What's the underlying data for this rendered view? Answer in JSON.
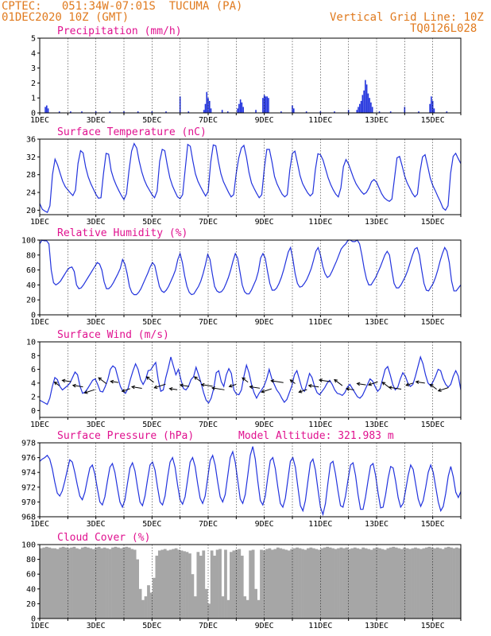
{
  "header": {
    "station": "CPTEC:   051:34W-07:01S  TUCUMA (PA)",
    "date": "01DEC2020 10Z (GMT)",
    "grid_note": "Vertical Grid Line: 10Z",
    "code": "TQ0126L028"
  },
  "colors": {
    "header": "#e07a1e",
    "title": "#e0118f",
    "line": "#2233dd",
    "cloud": "#a6a6a6",
    "grid": "#000000"
  },
  "x_labels": [
    "1DEC",
    "3DEC",
    "5DEC",
    "7DEC",
    "9DEC",
    "11DEC",
    "13DEC",
    "15DEC"
  ],
  "chart_data": [
    {
      "id": "precip",
      "type": "bar",
      "title": "Precipitation (mm/h)",
      "ylim": [
        0,
        5
      ],
      "yticks": [
        0,
        1,
        2,
        3,
        4,
        5
      ],
      "x_unit": "days since 01DEC 10Z",
      "points": [
        [
          0.2,
          0.4
        ],
        [
          0.25,
          0.5
        ],
        [
          0.3,
          0.3
        ],
        [
          0.7,
          0.1
        ],
        [
          1.1,
          0.1
        ],
        [
          1.5,
          0.1
        ],
        [
          2.0,
          0.1
        ],
        [
          2.5,
          0.1
        ],
        [
          3.0,
          0.1
        ],
        [
          3.5,
          0.1
        ],
        [
          4.0,
          0.1
        ],
        [
          4.5,
          0.1
        ],
        [
          5.0,
          1.1
        ],
        [
          5.3,
          0.1
        ],
        [
          5.85,
          0.2
        ],
        [
          5.9,
          0.6
        ],
        [
          5.95,
          1.4
        ],
        [
          6.0,
          1.0
        ],
        [
          6.05,
          0.8
        ],
        [
          6.1,
          0.3
        ],
        [
          6.5,
          0.2
        ],
        [
          6.7,
          0.1
        ],
        [
          7.05,
          0.3
        ],
        [
          7.1,
          0.6
        ],
        [
          7.15,
          0.9
        ],
        [
          7.2,
          0.7
        ],
        [
          7.25,
          0.4
        ],
        [
          7.7,
          0.2
        ],
        [
          7.95,
          1.0
        ],
        [
          8.0,
          1.2
        ],
        [
          8.05,
          1.1
        ],
        [
          8.1,
          1.1
        ],
        [
          8.15,
          1.0
        ],
        [
          8.6,
          0.1
        ],
        [
          9.0,
          0.5
        ],
        [
          9.05,
          0.3
        ],
        [
          9.5,
          0.1
        ],
        [
          10.0,
          0.1
        ],
        [
          10.5,
          0.1
        ],
        [
          11.0,
          0.2
        ],
        [
          11.3,
          0.2
        ],
        [
          11.35,
          0.4
        ],
        [
          11.4,
          0.6
        ],
        [
          11.45,
          0.8
        ],
        [
          11.5,
          1.2
        ],
        [
          11.55,
          1.5
        ],
        [
          11.6,
          2.2
        ],
        [
          11.65,
          1.9
        ],
        [
          11.7,
          1.3
        ],
        [
          11.75,
          1.0
        ],
        [
          11.8,
          0.7
        ],
        [
          11.85,
          0.4
        ],
        [
          12.1,
          0.1
        ],
        [
          12.5,
          0.1
        ],
        [
          13.0,
          0.4
        ],
        [
          13.5,
          0.1
        ],
        [
          13.9,
          0.6
        ],
        [
          13.95,
          1.1
        ],
        [
          14.0,
          0.8
        ],
        [
          14.05,
          0.3
        ],
        [
          14.5,
          0.1
        ]
      ]
    },
    {
      "id": "temp",
      "type": "line",
      "title": "Surface Temperature (nC)",
      "ylim": [
        19,
        36
      ],
      "yticks": [
        20,
        24,
        28,
        32,
        36
      ],
      "values": [
        21.5,
        20.2,
        19.8,
        19.5,
        21.0,
        28.0,
        31.5,
        30.2,
        28.3,
        26.5,
        25.3,
        24.6,
        23.9,
        23.3,
        24.5,
        30.5,
        33.4,
        32.9,
        29.7,
        27.5,
        26.0,
        24.8,
        23.6,
        22.7,
        22.8,
        28.3,
        32.8,
        32.6,
        28.9,
        27.0,
        25.6,
        24.4,
        23.3,
        22.4,
        23.7,
        29.0,
        33.3,
        35.0,
        34.0,
        31.0,
        28.6,
        26.8,
        25.5,
        24.5,
        23.5,
        22.8,
        24.3,
        31.0,
        33.7,
        33.4,
        30.1,
        27.3,
        25.5,
        24.2,
        23.0,
        22.6,
        23.5,
        29.2,
        34.8,
        34.4,
        31.1,
        28.2,
        26.5,
        25.3,
        24.2,
        23.2,
        24.2,
        30.8,
        34.7,
        34.5,
        31.0,
        28.2,
        26.4,
        25.2,
        24.0,
        23.0,
        23.5,
        28.3,
        31.8,
        34.0,
        34.6,
        32.0,
        28.5,
        26.1,
        24.9,
        23.8,
        22.8,
        23.5,
        29.4,
        33.7,
        33.7,
        30.9,
        27.6,
        25.9,
        24.7,
        23.6,
        23.0,
        23.5,
        29.1,
        32.8,
        33.3,
        30.6,
        27.8,
        26.0,
        24.9,
        23.9,
        23.2,
        23.8,
        29.1,
        32.7,
        32.5,
        31.3,
        29.3,
        27.3,
        25.8,
        24.6,
        23.6,
        23.0,
        25.0,
        29.8,
        31.4,
        30.4,
        28.8,
        27.2,
        25.9,
        25.0,
        24.2,
        23.6,
        24.0,
        25.0,
        26.4,
        26.9,
        26.3,
        25.0,
        23.7,
        22.8,
        22.3,
        22.0,
        22.5,
        27.1,
        31.8,
        32.1,
        30.0,
        27.7,
        26.1,
        25.0,
        23.8,
        23.0,
        23.6,
        28.6,
        32.0,
        32.5,
        30.0,
        27.3,
        25.6,
        24.4,
        23.1,
        21.9,
        20.5,
        20.0,
        21.0,
        28.3,
        32.1,
        32.8,
        31.6,
        30.5
      ]
    },
    {
      "id": "rh",
      "type": "line",
      "title": "Relative Humidity (%)",
      "ylim": [
        0,
        100
      ],
      "yticks": [
        0,
        20,
        40,
        60,
        80,
        100
      ],
      "values": [
        95,
        100,
        99,
        99,
        95,
        60,
        43,
        40,
        42,
        45,
        50,
        55,
        60,
        63,
        64,
        58,
        40,
        35,
        36,
        40,
        45,
        50,
        55,
        60,
        65,
        70,
        68,
        60,
        44,
        35,
        35,
        38,
        43,
        49,
        55,
        62,
        74,
        68,
        55,
        38,
        30,
        27,
        27,
        30,
        35,
        42,
        49,
        56,
        64,
        70,
        66,
        52,
        38,
        32,
        30,
        33,
        38,
        45,
        52,
        60,
        74,
        82,
        70,
        52,
        38,
        30,
        27,
        28,
        33,
        38,
        45,
        55,
        67,
        81,
        74,
        55,
        38,
        32,
        30,
        31,
        35,
        42,
        50,
        60,
        72,
        82,
        76,
        58,
        40,
        31,
        28,
        28,
        33,
        40,
        47,
        58,
        76,
        82,
        76,
        58,
        42,
        33,
        33,
        36,
        42,
        50,
        60,
        72,
        84,
        90,
        75,
        55,
        42,
        37,
        38,
        42,
        47,
        54,
        62,
        73,
        85,
        90,
        80,
        65,
        55,
        50,
        52,
        58,
        65,
        72,
        80,
        88,
        92,
        95,
        100,
        100,
        98,
        98,
        100,
        95,
        80,
        62,
        48,
        40,
        40,
        45,
        50,
        57,
        64,
        72,
        80,
        85,
        80,
        60,
        42,
        36,
        36,
        40,
        46,
        52,
        60,
        70,
        80,
        88,
        90,
        80,
        60,
        42,
        33,
        32,
        37,
        42,
        50,
        60,
        72,
        82,
        90,
        85,
        70,
        45,
        32,
        32,
        36,
        40
      ]
    },
    {
      "id": "wind",
      "type": "line",
      "title": "Surface Wind (m/s)",
      "ylim": [
        -1,
        10
      ],
      "yticks": [
        0,
        2,
        4,
        6,
        8,
        10
      ],
      "values": [
        1.5,
        1.3,
        1.1,
        0.9,
        1.8,
        3.5,
        4.8,
        4.5,
        3.5,
        3.0,
        3.3,
        3.6,
        4.0,
        4.8,
        5.6,
        5.2,
        3.5,
        2.5,
        2.7,
        3.2,
        3.8,
        4.4,
        4.6,
        3.8,
        2.8,
        2.7,
        3.5,
        4.5,
        6.0,
        6.5,
        6.2,
        4.8,
        3.5,
        2.8,
        2.5,
        3.2,
        4.6,
        5.8,
        6.8,
        6.0,
        4.5,
        3.8,
        4.5,
        5.8,
        5.9,
        6.5,
        7.0,
        4.5,
        2.8,
        3.0,
        4.8,
        6.2,
        7.8,
        6.5,
        5.2,
        6.0,
        4.5,
        3.2,
        3.0,
        3.5,
        4.5,
        4.9,
        6.3,
        5.2,
        4.0,
        2.6,
        1.5,
        1.1,
        1.8,
        3.2,
        5.5,
        5.8,
        4.2,
        3.5,
        5.2,
        6.1,
        5.4,
        3.0,
        2.4,
        2.3,
        3.0,
        5.0,
        6.6,
        5.5,
        3.8,
        2.6,
        1.8,
        2.5,
        3.0,
        3.6,
        4.6,
        6.0,
        4.7,
        3.8,
        3.0,
        2.5,
        1.8,
        1.2,
        1.6,
        2.6,
        3.6,
        5.2,
        5.8,
        4.5,
        3.2,
        2.8,
        4.0,
        5.4,
        4.8,
        3.5,
        2.6,
        2.3,
        2.8,
        3.3,
        4.0,
        4.4,
        3.8,
        3.0,
        2.5,
        2.4,
        2.2,
        2.6,
        3.4,
        3.8,
        3.2,
        2.6,
        2.0,
        1.8,
        2.2,
        3.0,
        3.8,
        4.6,
        4.3,
        3.5,
        2.8,
        3.2,
        4.6,
        6.0,
        6.4,
        5.2,
        3.8,
        3.0,
        3.4,
        4.6,
        5.5,
        5.0,
        4.0,
        3.5,
        3.8,
        5.0,
        6.4,
        7.8,
        6.8,
        5.2,
        4.0,
        3.6,
        4.2,
        5.0,
        6.0,
        5.8,
        4.6,
        3.8,
        3.4,
        3.8,
        5.0,
        5.8,
        5.0,
        3.0
      ]
    },
    {
      "id": "pressure",
      "type": "line",
      "title": "Surface Pressure (hPa)",
      "annotation": "Model Altitude: 321.983 m",
      "ylim": [
        968,
        978
      ],
      "yticks": [
        968,
        970,
        972,
        974,
        976,
        978
      ],
      "values": [
        975.5,
        975.8,
        976.0,
        976.3,
        975.8,
        974.5,
        972.7,
        971.2,
        970.8,
        971.5,
        972.8,
        974.3,
        975.7,
        975.4,
        974.0,
        972.3,
        970.8,
        970.3,
        971.3,
        973.0,
        974.6,
        975.0,
        973.8,
        971.8,
        970.0,
        969.6,
        970.7,
        972.8,
        974.7,
        975.2,
        974.0,
        971.9,
        970.0,
        969.3,
        970.3,
        972.5,
        974.6,
        975.3,
        974.2,
        972.0,
        970.0,
        969.5,
        970.8,
        973.0,
        975.0,
        975.4,
        974.3,
        972.0,
        970.0,
        969.6,
        970.8,
        973.3,
        975.4,
        976.0,
        974.7,
        972.3,
        970.3,
        969.7,
        970.7,
        973.0,
        975.4,
        976.0,
        974.8,
        972.5,
        970.5,
        969.8,
        970.8,
        973.2,
        975.6,
        976.3,
        975.0,
        972.7,
        970.7,
        970.0,
        971.0,
        973.5,
        976.0,
        976.8,
        975.4,
        972.9,
        970.4,
        969.8,
        971.0,
        973.6,
        976.3,
        977.5,
        975.8,
        972.8,
        970.2,
        969.6,
        970.8,
        973.4,
        975.6,
        976.0,
        974.5,
        972.0,
        969.8,
        969.3,
        970.5,
        973.0,
        975.5,
        976.0,
        974.7,
        972.0,
        969.5,
        968.8,
        970.2,
        972.8,
        975.3,
        975.8,
        974.3,
        971.7,
        969.3,
        968.3,
        969.8,
        972.6,
        975.2,
        975.5,
        973.8,
        971.5,
        969.5,
        969.3,
        970.8,
        973.0,
        975.0,
        975.3,
        973.6,
        971.0,
        969.0,
        969.0,
        970.7,
        972.9,
        974.9,
        975.2,
        973.6,
        971.2,
        969.2,
        969.3,
        971.0,
        973.2,
        974.8,
        974.6,
        972.8,
        970.6,
        969.3,
        969.8,
        971.6,
        973.6,
        975.0,
        974.4,
        972.4,
        970.4,
        969.4,
        970.2,
        972.0,
        974.0,
        975.0,
        974.0,
        972.0,
        970.0,
        968.8,
        969.4,
        971.2,
        973.5,
        974.8,
        973.4,
        971.3,
        970.6,
        971.4
      ]
    },
    {
      "id": "cloud",
      "type": "area",
      "title": "Cloud Cover (%)",
      "ylim": [
        0,
        100
      ],
      "yticks": [
        0,
        20,
        40,
        60,
        80,
        100
      ],
      "values": [
        95,
        96,
        97,
        96,
        95,
        95,
        94,
        96,
        97,
        96,
        95,
        96,
        97,
        95,
        94,
        96,
        97,
        96,
        95,
        94,
        96,
        97,
        95,
        96,
        95,
        94,
        96,
        97,
        96,
        95,
        96,
        97,
        96,
        94,
        93,
        80,
        40,
        25,
        30,
        45,
        35,
        55,
        85,
        92,
        93,
        94,
        92,
        93,
        94,
        95,
        93,
        92,
        91,
        90,
        88,
        60,
        30,
        90,
        85,
        92,
        40,
        20,
        92,
        85,
        93,
        94,
        30,
        93,
        25,
        90,
        92,
        93,
        94,
        85,
        30,
        25,
        92,
        93,
        40,
        25,
        93,
        92,
        94,
        95,
        93,
        94,
        96,
        95,
        94,
        93,
        92,
        94,
        95,
        96,
        95,
        94,
        93,
        95,
        96,
        95,
        94,
        93,
        95,
        96,
        97,
        96,
        95,
        94,
        95,
        96,
        95,
        96,
        94,
        95,
        96,
        95,
        94,
        96,
        95,
        94,
        93,
        95,
        96,
        95,
        94,
        93,
        95,
        96,
        97,
        96,
        95,
        94,
        96,
        95,
        94,
        95,
        96,
        95,
        94,
        95,
        96,
        97,
        96,
        95,
        96,
        95,
        94,
        96,
        97,
        96,
        95,
        96,
        95
      ]
    }
  ]
}
